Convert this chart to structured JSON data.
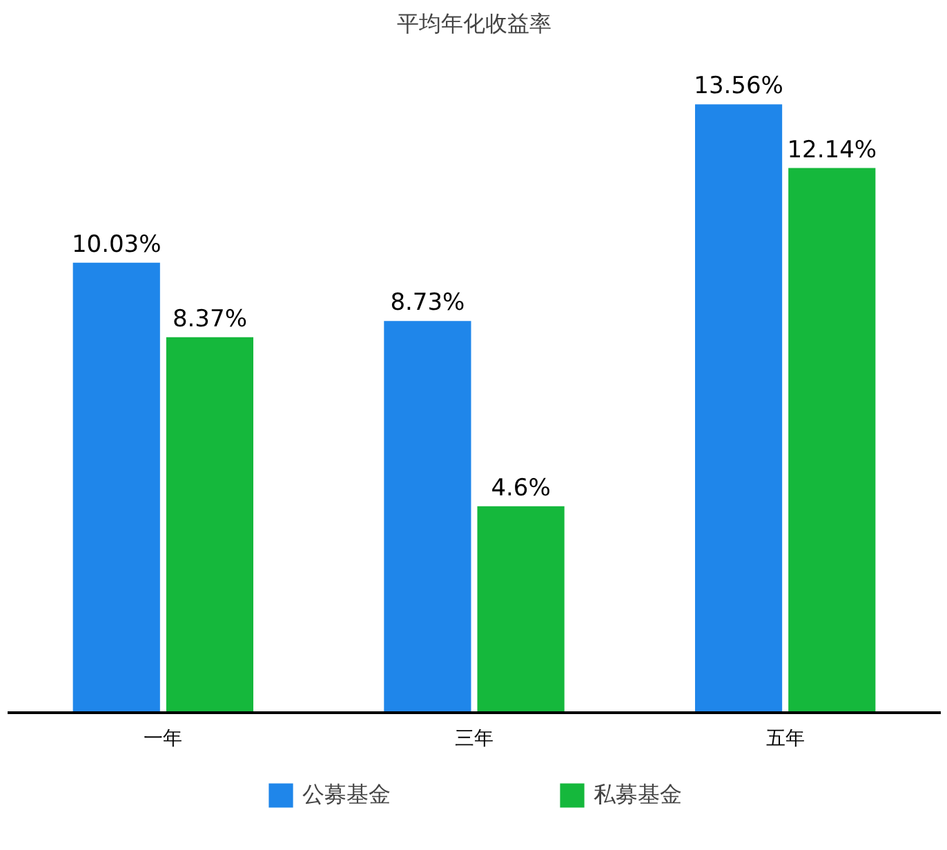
{
  "chart_data": {
    "type": "bar",
    "title": "平均年化收益率",
    "categories": [
      "一年",
      "三年",
      "五年"
    ],
    "series": [
      {
        "name": "公募基金",
        "color": "#1f86ea",
        "values": [
          10.03,
          8.73,
          13.56
        ],
        "value_labels": [
          "10.03%",
          "8.73%",
          "13.56%"
        ]
      },
      {
        "name": "私募基金",
        "color": "#15b83c",
        "values": [
          8.37,
          4.6,
          12.14
        ],
        "value_labels": [
          "8.37%",
          "4.6%",
          "12.14%"
        ]
      }
    ],
    "legend": "bottom",
    "grid": false,
    "tick_labels": "x"
  }
}
